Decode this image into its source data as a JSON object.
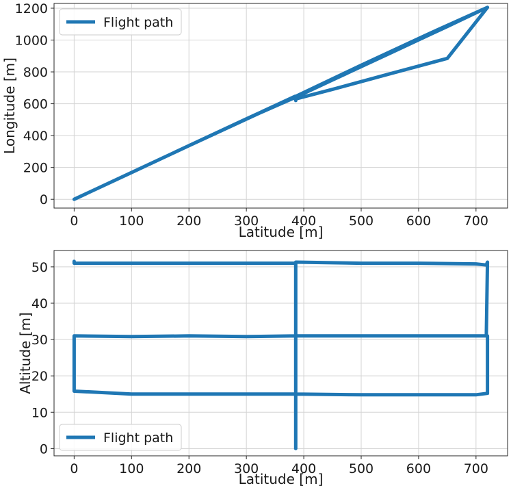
{
  "chart_data": [
    {
      "type": "line",
      "xlabel": "Latitude [m]",
      "ylabel": "Longitude [m]",
      "xlim": [
        -35,
        755
      ],
      "ylim": [
        -55,
        1230
      ],
      "xticks": [
        0,
        100,
        200,
        300,
        400,
        500,
        600,
        700
      ],
      "yticks": [
        0,
        200,
        400,
        600,
        800,
        1000,
        1200
      ],
      "grid": true,
      "legend": {
        "position": "top-left",
        "entries": [
          "Flight path"
        ]
      },
      "color": "#1f77b4",
      "series": [
        {
          "name": "Flight path",
          "x": [
            0,
            100,
            200,
            300,
            385,
            386,
            386,
            450,
            550,
            650,
            720,
            650,
            550,
            450,
            385,
            300,
            200,
            100,
            0,
            200,
            385,
            500,
            620,
            720
          ],
          "y": [
            0,
            168,
            337,
            505,
            647,
            620,
            630,
            690,
            788,
            885,
            1205,
            1085,
            917,
            749,
            640,
            505,
            337,
            168,
            0,
            337,
            645,
            842,
            1043,
            1205
          ]
        }
      ]
    },
    {
      "type": "line",
      "xlabel": "Latitude [m]",
      "ylabel": "Altitude [m]",
      "xlim": [
        -35,
        755
      ],
      "ylim": [
        -2,
        54.5
      ],
      "xticks": [
        0,
        100,
        200,
        300,
        400,
        500,
        600,
        700
      ],
      "yticks": [
        0,
        10,
        20,
        30,
        40,
        50
      ],
      "grid": true,
      "legend": {
        "position": "bottom-left",
        "entries": [
          "Flight path"
        ]
      },
      "color": "#1f77b4",
      "series": [
        {
          "name": "Flight path",
          "x": [
            0,
            0,
            100,
            200,
            300,
            385,
            386,
            500,
            600,
            700,
            718,
            720,
            718,
            600,
            500,
            386,
            300,
            200,
            100,
            0,
            0,
            100,
            200,
            300,
            386,
            500,
            600,
            700,
            720,
            720,
            700,
            600,
            500,
            386,
            386,
            386
          ],
          "y": [
            51.5,
            51,
            51,
            51,
            51,
            51,
            51.3,
            51,
            51,
            50.8,
            50.5,
            51.3,
            31,
            31,
            31,
            31,
            30.8,
            31,
            30.8,
            31,
            15.8,
            15,
            15,
            15,
            15,
            14.8,
            14.8,
            14.8,
            15.2,
            31,
            31,
            31,
            31,
            31,
            51,
            0
          ]
        }
      ]
    }
  ]
}
